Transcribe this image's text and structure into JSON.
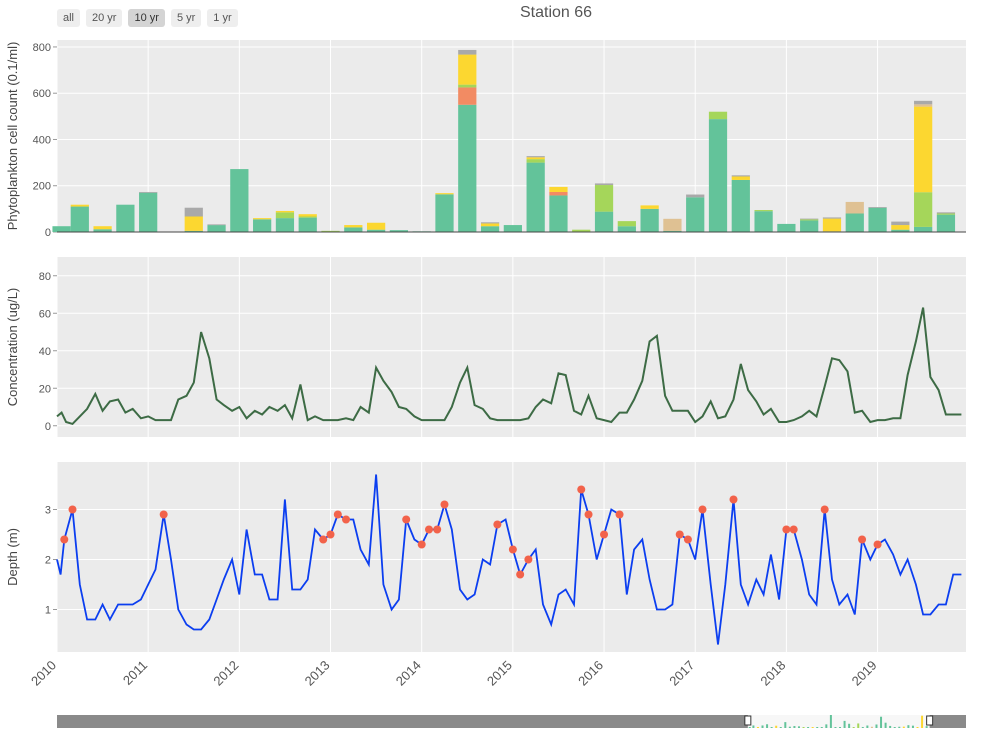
{
  "title": "Station 66",
  "range_buttons": [
    "all",
    "20 yr",
    "10 yr",
    "5 yr",
    "1 yr"
  ],
  "active_range": "10 yr",
  "colors": {
    "plot_bg": "#ebebeb",
    "grid": "#ffffff",
    "bar_green": "#63c39a",
    "bar_yellow": "#fcd730",
    "bar_lime": "#a5d65a",
    "bar_gray": "#a9a9a9",
    "bar_orange": "#f28b63",
    "bar_tan": "#dfc193",
    "line_conc": "#3d6b45",
    "line_depth": "#0b3ef0",
    "marker": "#f2624a",
    "navigator_fill": "#8a8a8a",
    "navigator_window": "#f7f7f7"
  },
  "chart_data": [
    {
      "type": "bar",
      "stacked": true,
      "ylabel": "Phytoplankton cell count (0.1/ml)",
      "ylim": [
        0,
        830
      ],
      "yticks": [
        0,
        200,
        400,
        600,
        800
      ],
      "x_range": [
        2010.0,
        2019.97
      ],
      "bar_width_years": 0.2,
      "series": [
        {
          "name": "green",
          "color": "#63c39a"
        },
        {
          "name": "orange",
          "color": "#f28b63"
        },
        {
          "name": "lime",
          "color": "#a5d65a"
        },
        {
          "name": "yellow",
          "color": "#fcd730"
        },
        {
          "name": "tan",
          "color": "#dfc193"
        },
        {
          "name": "gray",
          "color": "#a9a9a9"
        }
      ],
      "bars": [
        {
          "x": 2010.05,
          "values": [
            25,
            0,
            0,
            0,
            0,
            0
          ]
        },
        {
          "x": 2010.25,
          "values": [
            110,
            0,
            0,
            8,
            0,
            0
          ]
        },
        {
          "x": 2010.5,
          "values": [
            12,
            0,
            0,
            13,
            0,
            0
          ]
        },
        {
          "x": 2010.75,
          "values": [
            118,
            0,
            0,
            0,
            0,
            0
          ]
        },
        {
          "x": 2011.0,
          "values": [
            170,
            0,
            0,
            0,
            0,
            3
          ]
        },
        {
          "x": 2011.25,
          "values": [
            2,
            0,
            0,
            0,
            0,
            0
          ]
        },
        {
          "x": 2011.5,
          "values": [
            5,
            0,
            0,
            62,
            0,
            38
          ]
        },
        {
          "x": 2011.75,
          "values": [
            30,
            0,
            0,
            0,
            0,
            3
          ]
        },
        {
          "x": 2012.0,
          "values": [
            272,
            0,
            0,
            0,
            0,
            0
          ]
        },
        {
          "x": 2012.25,
          "values": [
            55,
            0,
            0,
            5,
            0,
            0
          ]
        },
        {
          "x": 2012.5,
          "values": [
            60,
            0,
            25,
            6,
            0,
            0
          ]
        },
        {
          "x": 2012.75,
          "values": [
            62,
            0,
            5,
            10,
            0,
            0
          ]
        },
        {
          "x": 2013.0,
          "values": [
            2,
            0,
            3,
            0,
            0,
            0
          ]
        },
        {
          "x": 2013.25,
          "values": [
            20,
            0,
            0,
            10,
            0,
            0
          ]
        },
        {
          "x": 2013.5,
          "values": [
            10,
            0,
            0,
            30,
            0,
            0
          ]
        },
        {
          "x": 2013.75,
          "values": [
            8,
            0,
            0,
            0,
            0,
            0
          ]
        },
        {
          "x": 2014.0,
          "values": [
            3,
            0,
            0,
            0,
            0,
            0
          ]
        },
        {
          "x": 2014.25,
          "values": [
            163,
            0,
            0,
            5,
            0,
            0
          ]
        },
        {
          "x": 2014.5,
          "values": [
            550,
            75,
            12,
            130,
            0,
            20
          ]
        },
        {
          "x": 2014.75,
          "values": [
            25,
            0,
            0,
            12,
            0,
            5
          ]
        },
        {
          "x": 2015.0,
          "values": [
            30,
            0,
            0,
            0,
            0,
            0
          ]
        },
        {
          "x": 2015.25,
          "values": [
            300,
            0,
            15,
            8,
            0,
            5
          ]
        },
        {
          "x": 2015.5,
          "values": [
            158,
            15,
            0,
            22,
            0,
            0
          ]
        },
        {
          "x": 2015.75,
          "values": [
            2,
            0,
            8,
            0,
            0,
            0
          ]
        },
        {
          "x": 2016.0,
          "values": [
            88,
            0,
            115,
            0,
            0,
            7
          ]
        },
        {
          "x": 2016.25,
          "values": [
            25,
            0,
            22,
            0,
            0,
            0
          ]
        },
        {
          "x": 2016.5,
          "values": [
            100,
            0,
            0,
            15,
            0,
            0
          ]
        },
        {
          "x": 2016.75,
          "values": [
            5,
            0,
            0,
            0,
            52,
            0
          ]
        },
        {
          "x": 2017.0,
          "values": [
            150,
            0,
            0,
            0,
            0,
            12
          ]
        },
        {
          "x": 2017.25,
          "values": [
            488,
            0,
            32,
            0,
            0,
            0
          ]
        },
        {
          "x": 2017.5,
          "values": [
            225,
            0,
            0,
            15,
            0,
            5
          ]
        },
        {
          "x": 2017.75,
          "values": [
            90,
            0,
            5,
            0,
            0,
            0
          ]
        },
        {
          "x": 2018.0,
          "values": [
            35,
            0,
            0,
            0,
            0,
            0
          ]
        },
        {
          "x": 2018.25,
          "values": [
            50,
            0,
            5,
            0,
            0,
            3
          ]
        },
        {
          "x": 2018.5,
          "values": [
            3,
            0,
            0,
            55,
            0,
            5
          ]
        },
        {
          "x": 2018.75,
          "values": [
            80,
            0,
            0,
            0,
            50,
            0
          ]
        },
        {
          "x": 2019.0,
          "values": [
            105,
            0,
            0,
            0,
            0,
            3
          ]
        },
        {
          "x": 2019.25,
          "values": [
            10,
            0,
            0,
            20,
            0,
            15
          ]
        },
        {
          "x": 2019.5,
          "values": [
            22,
            0,
            150,
            370,
            10,
            15
          ]
        },
        {
          "x": 2019.75,
          "values": [
            75,
            0,
            5,
            0,
            0,
            5
          ]
        }
      ]
    },
    {
      "type": "line",
      "ylabel": "Concentration (ug/L)",
      "ylim": [
        -6,
        90
      ],
      "yticks": [
        0,
        20,
        40,
        60,
        80
      ],
      "x": [
        2010.0,
        2010.05,
        2010.1,
        2010.17,
        2010.25,
        2010.33,
        2010.42,
        2010.5,
        2010.58,
        2010.67,
        2010.75,
        2010.83,
        2010.92,
        2011.0,
        2011.08,
        2011.17,
        2011.25,
        2011.33,
        2011.42,
        2011.5,
        2011.58,
        2011.67,
        2011.75,
        2011.83,
        2011.92,
        2012.0,
        2012.08,
        2012.17,
        2012.25,
        2012.33,
        2012.42,
        2012.5,
        2012.58,
        2012.67,
        2012.75,
        2012.83,
        2012.92,
        2013.0,
        2013.08,
        2013.17,
        2013.25,
        2013.33,
        2013.42,
        2013.5,
        2013.58,
        2013.67,
        2013.75,
        2013.83,
        2013.92,
        2014.0,
        2014.08,
        2014.17,
        2014.25,
        2014.33,
        2014.42,
        2014.5,
        2014.58,
        2014.67,
        2014.75,
        2014.83,
        2014.92,
        2015.0,
        2015.08,
        2015.17,
        2015.25,
        2015.33,
        2015.42,
        2015.5,
        2015.58,
        2015.67,
        2015.75,
        2015.83,
        2015.92,
        2016.0,
        2016.08,
        2016.17,
        2016.25,
        2016.33,
        2016.42,
        2016.5,
        2016.58,
        2016.67,
        2016.75,
        2016.83,
        2016.92,
        2017.0,
        2017.08,
        2017.17,
        2017.25,
        2017.33,
        2017.42,
        2017.5,
        2017.58,
        2017.67,
        2017.75,
        2017.83,
        2017.92,
        2018.0,
        2018.08,
        2018.17,
        2018.25,
        2018.33,
        2018.42,
        2018.5,
        2018.58,
        2018.67,
        2018.75,
        2018.83,
        2018.92,
        2019.0,
        2019.08,
        2019.17,
        2019.25,
        2019.33,
        2019.42,
        2019.5,
        2019.58,
        2019.67,
        2019.75,
        2019.83,
        2019.92
      ],
      "y": [
        5,
        7,
        2,
        1,
        5,
        9,
        17,
        8,
        13,
        14,
        7,
        9,
        4,
        5,
        3,
        3,
        3,
        14,
        16,
        23,
        50,
        36,
        14,
        11,
        8,
        10,
        4,
        8,
        6,
        10,
        8,
        11,
        4,
        22,
        3,
        5,
        3,
        3,
        3,
        4,
        3,
        10,
        7,
        31,
        24,
        18,
        10,
        9,
        5,
        3,
        3,
        3,
        3,
        10,
        23,
        31,
        11,
        9,
        4,
        3,
        3,
        3,
        3,
        4,
        10,
        14,
        12,
        28,
        27,
        8,
        6,
        16,
        4,
        3,
        2,
        7,
        7,
        14,
        24,
        45,
        48,
        16,
        8,
        8,
        8,
        2,
        5,
        13,
        4,
        5,
        14,
        33,
        19,
        13,
        6,
        9,
        2,
        2,
        3,
        5,
        8,
        5,
        21,
        36,
        35,
        29,
        7,
        8,
        2,
        3,
        3,
        4,
        4,
        27,
        45,
        63,
        26,
        19,
        6,
        6,
        6
      ]
    },
    {
      "type": "line",
      "ylabel": "Depth (m)",
      "ylim": [
        0.15,
        3.95
      ],
      "yticks": [
        1,
        2,
        3
      ],
      "xticks": [
        "2010",
        "2011",
        "2012",
        "2013",
        "2014",
        "2015",
        "2016",
        "2017",
        "2018",
        "2019"
      ],
      "x": [
        2010.0,
        2010.04,
        2010.08,
        2010.17,
        2010.25,
        2010.33,
        2010.42,
        2010.5,
        2010.58,
        2010.67,
        2010.75,
        2010.83,
        2010.92,
        2011.0,
        2011.08,
        2011.17,
        2011.25,
        2011.33,
        2011.42,
        2011.5,
        2011.58,
        2011.67,
        2011.75,
        2011.83,
        2011.92,
        2012.0,
        2012.08,
        2012.17,
        2012.25,
        2012.33,
        2012.42,
        2012.5,
        2012.58,
        2012.67,
        2012.75,
        2012.83,
        2012.92,
        2013.0,
        2013.08,
        2013.17,
        2013.25,
        2013.33,
        2013.42,
        2013.5,
        2013.58,
        2013.67,
        2013.75,
        2013.83,
        2013.92,
        2014.0,
        2014.08,
        2014.17,
        2014.25,
        2014.33,
        2014.42,
        2014.5,
        2014.58,
        2014.67,
        2014.75,
        2014.83,
        2014.92,
        2015.0,
        2015.08,
        2015.17,
        2015.25,
        2015.33,
        2015.42,
        2015.5,
        2015.58,
        2015.67,
        2015.75,
        2015.83,
        2015.92,
        2016.0,
        2016.08,
        2016.17,
        2016.25,
        2016.33,
        2016.42,
        2016.5,
        2016.58,
        2016.67,
        2016.75,
        2016.83,
        2016.92,
        2017.0,
        2017.08,
        2017.17,
        2017.25,
        2017.33,
        2017.42,
        2017.5,
        2017.58,
        2017.67,
        2017.75,
        2017.83,
        2017.92,
        2018.0,
        2018.08,
        2018.17,
        2018.25,
        2018.33,
        2018.42,
        2018.5,
        2018.58,
        2018.67,
        2018.75,
        2018.83,
        2018.92,
        2019.0,
        2019.08,
        2019.17,
        2019.25,
        2019.33,
        2019.42,
        2019.5,
        2019.58,
        2019.67,
        2019.75,
        2019.83,
        2019.92
      ],
      "y": [
        2.0,
        1.7,
        2.4,
        3.0,
        1.5,
        0.8,
        0.8,
        1.1,
        0.8,
        1.1,
        1.1,
        1.1,
        1.2,
        1.5,
        1.8,
        2.9,
        2.0,
        1.0,
        0.7,
        0.6,
        0.6,
        0.8,
        1.2,
        1.6,
        2.0,
        1.3,
        2.6,
        1.7,
        1.7,
        1.2,
        1.2,
        3.2,
        1.4,
        1.4,
        1.6,
        2.6,
        2.4,
        2.5,
        2.9,
        2.8,
        2.8,
        2.2,
        1.9,
        3.7,
        1.5,
        1.0,
        1.2,
        2.8,
        2.4,
        2.3,
        2.6,
        2.6,
        3.1,
        2.6,
        1.4,
        1.2,
        1.3,
        2.0,
        1.9,
        2.7,
        2.8,
        2.2,
        1.7,
        2.0,
        2.2,
        1.1,
        0.7,
        1.3,
        1.4,
        1.1,
        3.4,
        2.9,
        2.0,
        2.5,
        3.0,
        2.9,
        1.3,
        2.2,
        2.4,
        1.6,
        1.0,
        1.0,
        1.1,
        2.5,
        2.4,
        2.0,
        3.0,
        1.5,
        0.3,
        1.5,
        3.2,
        1.5,
        1.1,
        1.6,
        1.3,
        2.1,
        1.2,
        2.6,
        2.6,
        2.0,
        1.3,
        1.1,
        3.0,
        1.6,
        1.1,
        1.3,
        0.9,
        2.4,
        2.0,
        2.3,
        2.4,
        2.1,
        1.7,
        2.0,
        1.5,
        0.9,
        0.9,
        1.1,
        1.1,
        1.7,
        1.7
      ],
      "markers": [
        {
          "x": 2010.08,
          "y": 2.4
        },
        {
          "x": 2010.17,
          "y": 3.0
        },
        {
          "x": 2011.17,
          "y": 2.9
        },
        {
          "x": 2012.92,
          "y": 2.4
        },
        {
          "x": 2013.0,
          "y": 2.5
        },
        {
          "x": 2013.08,
          "y": 2.9
        },
        {
          "x": 2013.17,
          "y": 2.8
        },
        {
          "x": 2013.83,
          "y": 2.8
        },
        {
          "x": 2014.0,
          "y": 2.3
        },
        {
          "x": 2014.08,
          "y": 2.6
        },
        {
          "x": 2014.17,
          "y": 2.6
        },
        {
          "x": 2014.25,
          "y": 3.1
        },
        {
          "x": 2014.83,
          "y": 2.7
        },
        {
          "x": 2015.0,
          "y": 2.2
        },
        {
          "x": 2015.08,
          "y": 1.7
        },
        {
          "x": 2015.17,
          "y": 2.0
        },
        {
          "x": 2015.75,
          "y": 3.4
        },
        {
          "x": 2015.83,
          "y": 2.9
        },
        {
          "x": 2016.0,
          "y": 2.5
        },
        {
          "x": 2016.17,
          "y": 2.9
        },
        {
          "x": 2016.83,
          "y": 2.5
        },
        {
          "x": 2016.92,
          "y": 2.4
        },
        {
          "x": 2017.08,
          "y": 3.0
        },
        {
          "x": 2017.42,
          "y": 3.2
        },
        {
          "x": 2018.0,
          "y": 2.6
        },
        {
          "x": 2018.08,
          "y": 2.6
        },
        {
          "x": 2018.42,
          "y": 3.0
        },
        {
          "x": 2018.83,
          "y": 2.4
        },
        {
          "x": 2019.0,
          "y": 2.3
        }
      ]
    }
  ],
  "navigator": {
    "window_start_fraction": 0.76,
    "window_end_fraction": 0.96
  }
}
